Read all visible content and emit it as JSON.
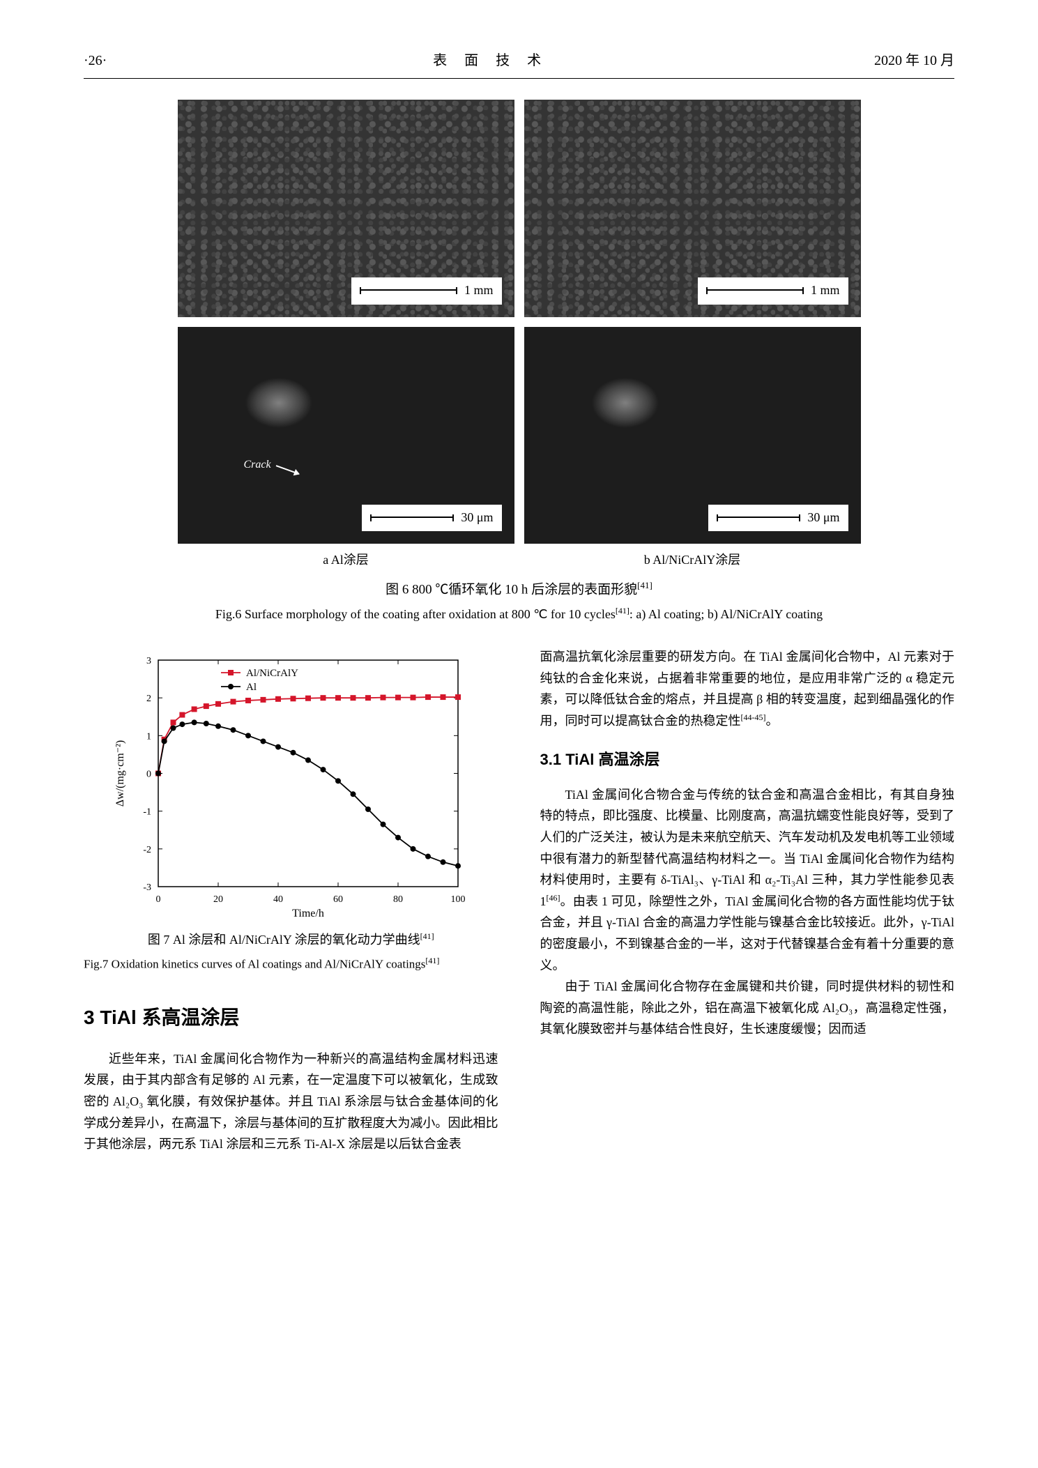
{
  "header": {
    "page_number": "·26·",
    "journal_title": "表 面 技 术",
    "date": "2020 年 10 月"
  },
  "figure6": {
    "panels": {
      "top_left_scale": "1 mm",
      "top_right_scale": "1 mm",
      "bottom_left_scale": "30 μm",
      "bottom_right_scale": "30 μm",
      "crack_label": "Crack"
    },
    "sub_a": "a  Al涂层",
    "sub_b": "b  Al/NiCrAlY涂层",
    "caption_cn": "图 6   800 ℃循环氧化 10 h 后涂层的表面形貌",
    "caption_cn_ref": "[41]",
    "caption_en": "Fig.6 Surface morphology of the coating after oxidation at 800 ℃ for 10 cycles",
    "caption_en_ref": "[41]",
    "caption_en_tail": ": a) Al coating; b) Al/NiCrAlY coating"
  },
  "figure7": {
    "chart": {
      "type": "line",
      "xlabel": "Time/h",
      "ylabel": "Δw/(mg·cm⁻²)",
      "xlim": [
        0,
        100
      ],
      "ylim": [
        -3,
        3
      ],
      "xticks": [
        0,
        20,
        40,
        60,
        80,
        100
      ],
      "yticks": [
        -3,
        -2,
        -1,
        0,
        1,
        2,
        3
      ],
      "series": [
        {
          "name": "Al/NiCrAlY",
          "marker": "square",
          "color": "#d4152a",
          "x": [
            0,
            2,
            5,
            8,
            12,
            16,
            20,
            25,
            30,
            35,
            40,
            45,
            50,
            55,
            60,
            65,
            70,
            75,
            80,
            85,
            90,
            95,
            100
          ],
          "y": [
            0,
            0.9,
            1.35,
            1.55,
            1.7,
            1.78,
            1.84,
            1.9,
            1.93,
            1.95,
            1.97,
            1.98,
            1.99,
            2.0,
            2.0,
            2.0,
            2.0,
            2.01,
            2.01,
            2.01,
            2.02,
            2.02,
            2.02
          ]
        },
        {
          "name": "Al",
          "marker": "circle",
          "color": "#000000",
          "x": [
            0,
            2,
            5,
            8,
            12,
            16,
            20,
            25,
            30,
            35,
            40,
            45,
            50,
            55,
            60,
            65,
            70,
            75,
            80,
            85,
            90,
            95,
            100
          ],
          "y": [
            0,
            0.85,
            1.2,
            1.3,
            1.35,
            1.32,
            1.25,
            1.15,
            1.0,
            0.85,
            0.7,
            0.55,
            0.35,
            0.1,
            -0.2,
            -0.55,
            -0.95,
            -1.35,
            -1.7,
            -2.0,
            -2.2,
            -2.35,
            -2.45
          ]
        }
      ],
      "legend_pos": "top-inside",
      "axis_color": "#000000",
      "tick_fontsize": 14,
      "label_fontsize": 16
    },
    "caption_cn": "图 7   Al 涂层和 Al/NiCrAlY 涂层的氧化动力学曲线",
    "caption_cn_ref": "[41]",
    "caption_en_1": "Fig.7 Oxidation kinetics curves of Al coatings and Al/NiCrAlY",
    "caption_en_2": "coatings",
    "caption_en_ref": "[41]"
  },
  "section3": {
    "heading": "3   TiAl 系高温涂层",
    "para1": "近些年来，TiAl 金属间化合物作为一种新兴的高温结构金属材料迅速发展，由于其内部含有足够的 Al 元素，在一定温度下可以被氧化，生成致密的 Al₂O₃ 氧化膜，有效保护基体。并且 TiAl 系涂层与钛合金基体间的化学成分差异小，在高温下，涂层与基体间的互扩散程度大为减小。因此相比于其他涂层，两元系 TiAl 涂层和三元系 Ti-Al-X 涂层是以后钛合金表"
  },
  "right_col": {
    "para_top": "面高温抗氧化涂层重要的研发方向。在 TiAl 金属间化合物中，Al 元素对于纯钛的合金化来说，占据着非常重要的地位，是应用非常广泛的 α 稳定元素，可以降低钛合金的熔点，并且提高 β 相的转变温度，起到细晶强化的作用，同时可以提高钛合金的热稳定性",
    "para_top_ref": "[44-45]",
    "para_top_end": "。",
    "sub_heading": "3.1   TiAl 高温涂层",
    "para_a": "TiAl 金属间化合物合金与传统的钛合金和高温合金相比，有其自身独特的特点，即比强度、比模量、比刚度高，高温抗蠕变性能良好等，受到了人们的广泛关注，被认为是未来航空航天、汽车发动机及发电机等工业领域中很有潜力的新型替代高温结构材料之一。当 TiAl 金属间化合物作为结构材料使用时，主要有 δ-TiAl₃、γ-TiAl 和 α₂-Ti₃Al 三种，其力学性能参见表 1",
    "para_a_ref": "[46]",
    "para_a_mid": "。由表 1 可见，除塑性之外，TiAl 金属间化合物的各方面性能均优于钛合金，并且 γ-TiAl 合金的高温力学性能与镍基合金比较接近。此外，γ-TiAl 的密度最小，不到镍基合金的一半，这对于代替镍基合金有着十分重要的意义。",
    "para_b": "由于 TiAl 金属间化合物存在金属键和共价键，同时提供材料的韧性和陶瓷的高温性能，除此之外，铝在高温下被氧化成 Al₂O₃，高温稳定性强，其氧化膜致密并与基体结合性良好，生长速度缓慢；因而适"
  }
}
